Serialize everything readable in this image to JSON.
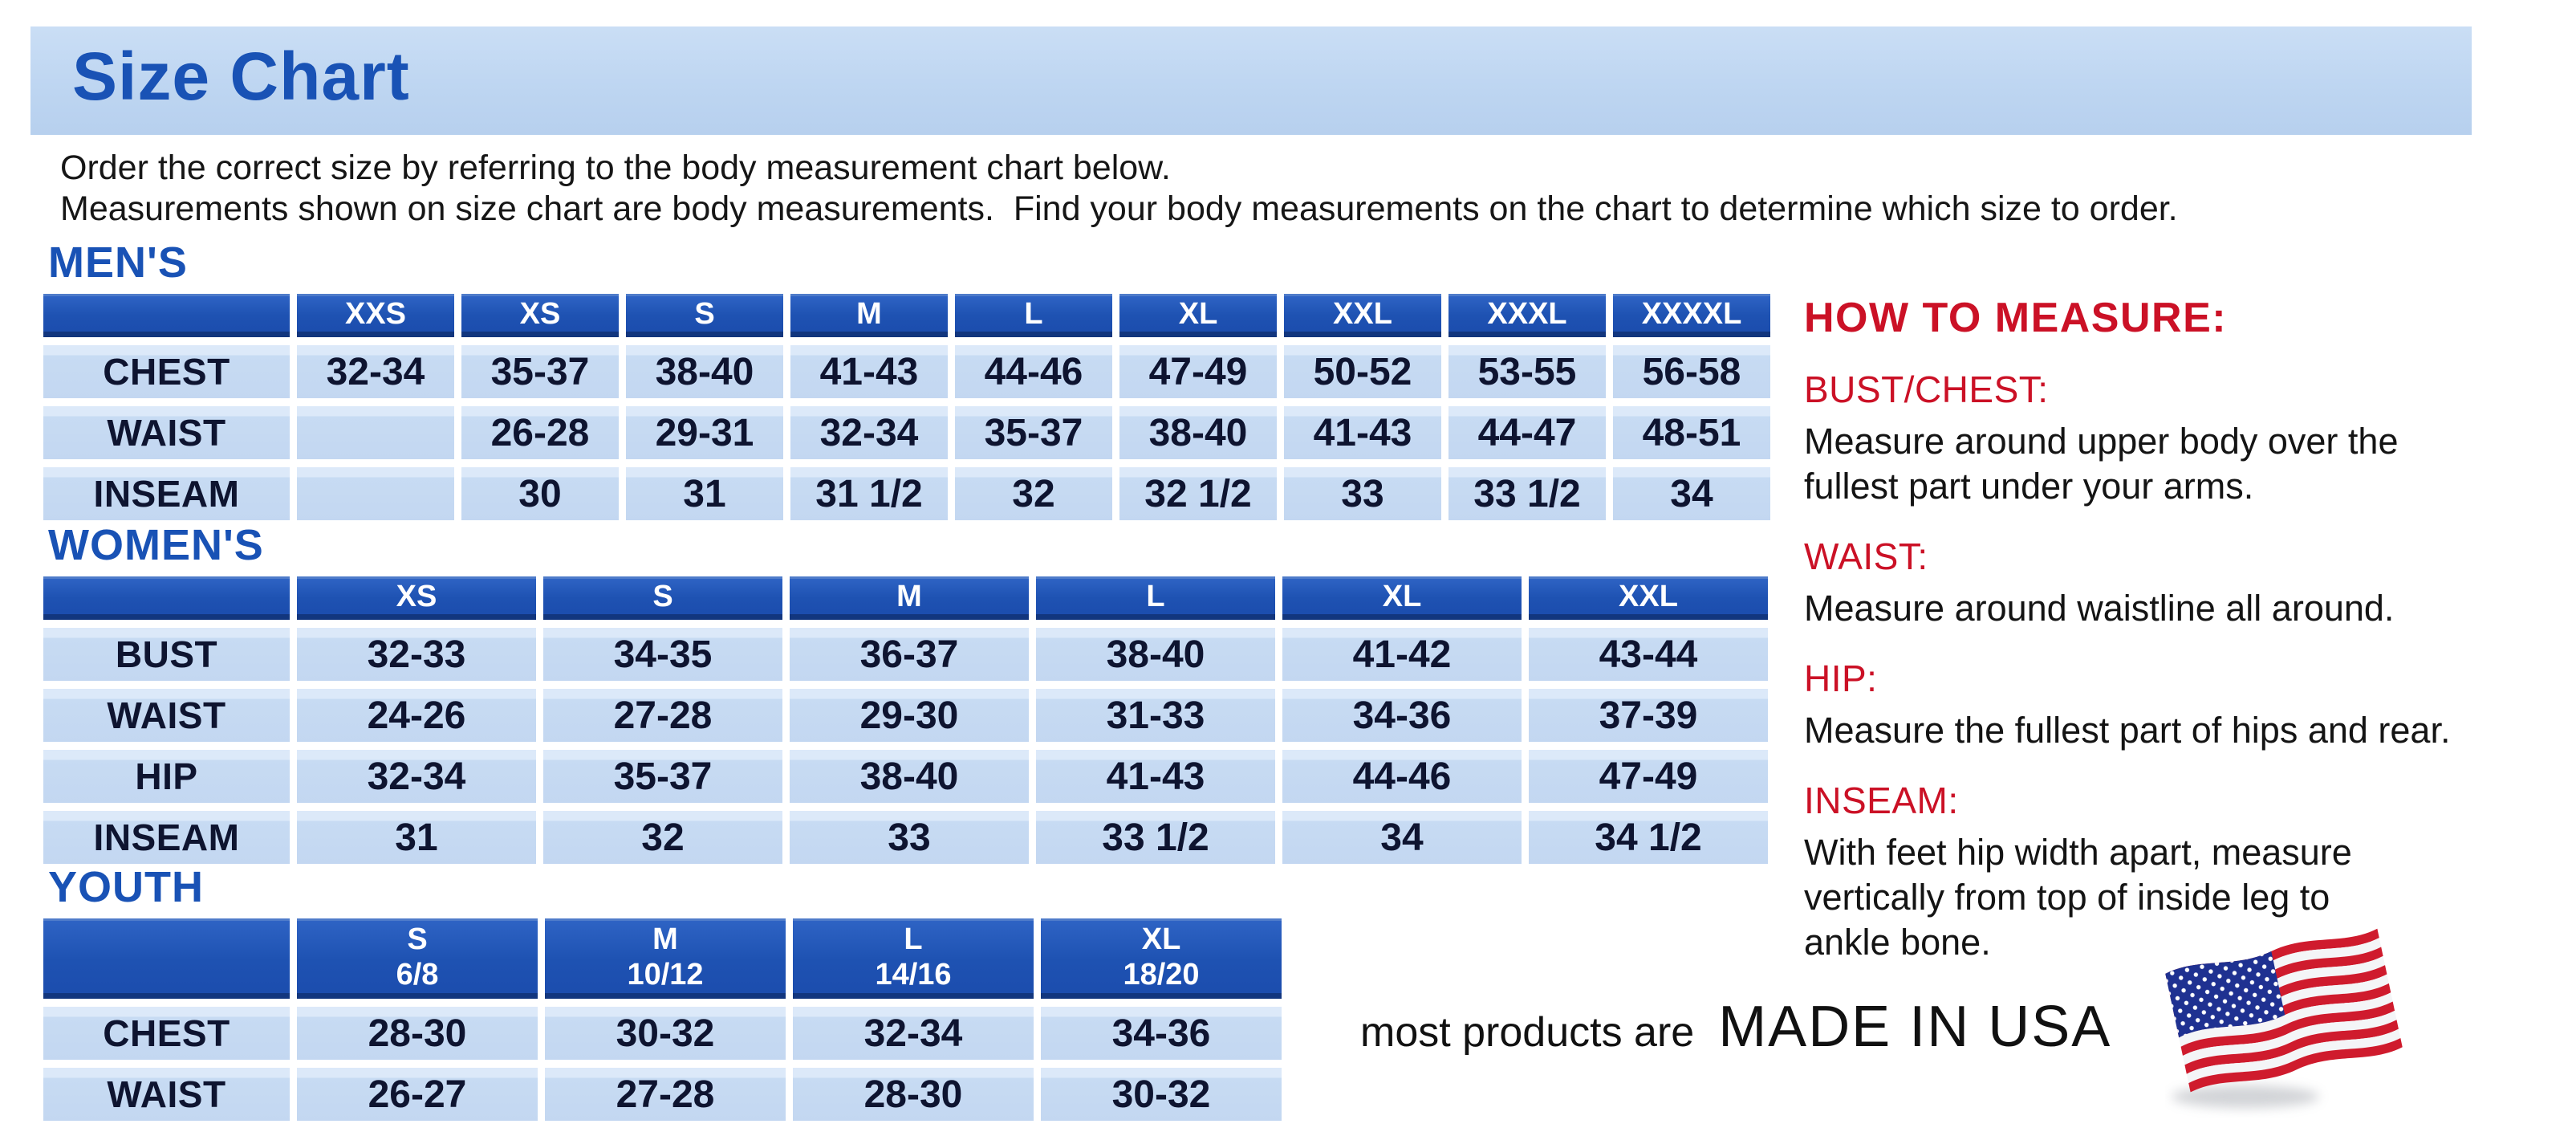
{
  "header": {
    "title": "Size Chart"
  },
  "intro": {
    "line1": "Order the correct size by referring to the body measurement chart below.",
    "line2": "Measurements shown on size chart are body measurements.  Find your body measurements on the chart to determine which size to order."
  },
  "tables": [
    {
      "id": "mens",
      "section": "MEN'S",
      "columns": [
        {
          "label": "XXS"
        },
        {
          "label": "XS"
        },
        {
          "label": "S"
        },
        {
          "label": "M"
        },
        {
          "label": "L"
        },
        {
          "label": "XL"
        },
        {
          "label": "XXL"
        },
        {
          "label": "XXXL"
        },
        {
          "label": "XXXXL"
        }
      ],
      "rows": [
        {
          "label": "CHEST",
          "values": [
            "32-34",
            "35-37",
            "38-40",
            "41-43",
            "44-46",
            "47-49",
            "50-52",
            "53-55",
            "56-58"
          ]
        },
        {
          "label": "WAIST",
          "values": [
            "",
            "26-28",
            "29-31",
            "32-34",
            "35-37",
            "38-40",
            "41-43",
            "44-47",
            "48-51"
          ]
        },
        {
          "label": "INSEAM",
          "values": [
            "",
            "30",
            "31",
            "31 1/2",
            "32",
            "32 1/2",
            "33",
            "33 1/2",
            "34"
          ]
        }
      ]
    },
    {
      "id": "womens",
      "section": "WOMEN'S",
      "columns": [
        {
          "label": "XS"
        },
        {
          "label": "S"
        },
        {
          "label": "M"
        },
        {
          "label": "L"
        },
        {
          "label": "XL"
        },
        {
          "label": "XXL"
        }
      ],
      "rows": [
        {
          "label": "BUST",
          "values": [
            "32-33",
            "34-35",
            "36-37",
            "38-40",
            "41-42",
            "43-44"
          ]
        },
        {
          "label": "WAIST",
          "values": [
            "24-26",
            "27-28",
            "29-30",
            "31-33",
            "34-36",
            "37-39"
          ]
        },
        {
          "label": "HIP",
          "values": [
            "32-34",
            "35-37",
            "38-40",
            "41-43",
            "44-46",
            "47-49"
          ]
        },
        {
          "label": "INSEAM",
          "values": [
            "31",
            "32",
            "33",
            "33 1/2",
            "34",
            "34 1/2"
          ]
        }
      ]
    },
    {
      "id": "youth",
      "section": "YOUTH",
      "columns": [
        {
          "label": "S",
          "sub": "6/8"
        },
        {
          "label": "M",
          "sub": "10/12"
        },
        {
          "label": "L",
          "sub": "14/16"
        },
        {
          "label": "XL",
          "sub": "18/20"
        }
      ],
      "rows": [
        {
          "label": "CHEST",
          "values": [
            "28-30",
            "30-32",
            "32-34",
            "34-36"
          ]
        },
        {
          "label": "WAIST",
          "values": [
            "26-27",
            "27-28",
            "28-30",
            "30-32"
          ]
        }
      ]
    }
  ],
  "how_to_measure": {
    "title": "HOW TO MEASURE:",
    "items": [
      {
        "heading": "BUST/CHEST:",
        "lines": [
          "Measure around upper body over the",
          "fullest part under your arms."
        ]
      },
      {
        "heading": "WAIST:",
        "lines": [
          "Measure around waistline all around."
        ]
      },
      {
        "heading": "HIP:",
        "lines": [
          "Measure the fullest part of hips and rear."
        ]
      },
      {
        "heading": "INSEAM:",
        "lines": [
          "With feet hip width apart, measure",
          "vertically from top of inside leg to",
          "ankle bone."
        ]
      }
    ]
  },
  "footer": {
    "prefix": "most products are",
    "made_in": "MADE IN USA",
    "flag_icon": "usa-flag-icon"
  },
  "colors": {
    "accent_blue": "#1952b5",
    "table_header_blue": "#1e52b2",
    "cell_light_blue": "#c7dbf3",
    "heading_red": "#cb1126",
    "band_blue": "#bdd5f1",
    "flag_red": "#cf1b2d",
    "flag_navy": "#1f3191"
  }
}
